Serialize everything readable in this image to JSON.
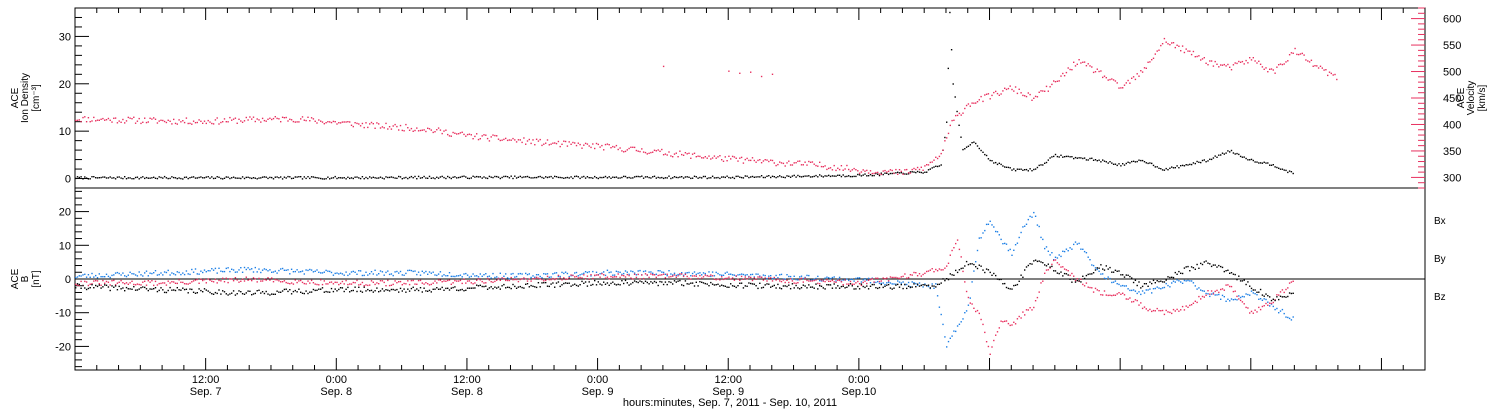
{
  "colors": {
    "black": "#000000",
    "pink": "#e8305f",
    "blue": "#1c7fe6"
  },
  "chart_data": [
    {
      "type": "scatter",
      "panel": "top",
      "left_axis": {
        "label_lines": [
          "ACE",
          "Ion Density",
          "[cm⁻³]"
        ],
        "ticks": [
          "0",
          "10",
          "20",
          "30"
        ],
        "range": [
          -2,
          36
        ]
      },
      "right_axis": {
        "label_lines": [
          "ACE",
          "Velocity",
          "[km/s]"
        ],
        "ticks": [
          "300",
          "350",
          "400",
          "450",
          "500",
          "550",
          "600"
        ],
        "range": [
          280,
          620
        ]
      },
      "series": [
        {
          "axis": "left",
          "color": "#000000",
          "points": [
            [
              0,
              0.3
            ],
            [
              12,
              0.3
            ],
            [
              24,
              0.3
            ],
            [
              36,
              0.4
            ],
            [
              48,
              0.4
            ],
            [
              60,
              0.4
            ],
            [
              72,
              0.8
            ],
            [
              78,
              1.5
            ],
            [
              79.5,
              3
            ],
            [
              80,
              12
            ],
            [
              80.3,
              35
            ],
            [
              80.6,
              20
            ],
            [
              81.5,
              6
            ],
            [
              82.5,
              8
            ],
            [
              84,
              4
            ],
            [
              86,
              2
            ],
            [
              88,
              2
            ],
            [
              90,
              5
            ],
            [
              92,
              4.5
            ],
            [
              94,
              4
            ],
            [
              96,
              3
            ],
            [
              98,
              4
            ],
            [
              100,
              2
            ],
            [
              102,
              3
            ],
            [
              104,
              4
            ],
            [
              106,
              6
            ],
            [
              108,
              4
            ],
            [
              110,
              3
            ],
            [
              112,
              1
            ]
          ]
        },
        {
          "axis": "right",
          "color": "#e8305f",
          "points": [
            [
              0,
              412
            ],
            [
              4,
              410
            ],
            [
              8,
              408
            ],
            [
              12,
              407
            ],
            [
              16,
              410
            ],
            [
              20,
              412
            ],
            [
              24,
              405
            ],
            [
              28,
              398
            ],
            [
              32,
              393
            ],
            [
              36,
              380
            ],
            [
              40,
              372
            ],
            [
              44,
              365
            ],
            [
              48,
              360
            ],
            [
              52,
              352
            ],
            [
              56,
              344
            ],
            [
              60,
              336
            ],
            [
              64,
              330
            ],
            [
              68,
              325
            ],
            [
              72,
              315
            ],
            [
              76,
              310
            ],
            [
              78,
              320
            ],
            [
              79.5,
              345
            ],
            [
              80.5,
              405
            ],
            [
              82,
              440
            ],
            [
              84,
              455
            ],
            [
              86,
              470
            ],
            [
              88,
              450
            ],
            [
              90,
              480
            ],
            [
              92,
              520
            ],
            [
              94,
              500
            ],
            [
              96,
              470
            ],
            [
              98,
              500
            ],
            [
              100,
              560
            ],
            [
              102,
              540
            ],
            [
              104,
              520
            ],
            [
              106,
              508
            ],
            [
              108,
              525
            ],
            [
              110,
              500
            ],
            [
              112,
              540
            ],
            [
              114,
              510
            ],
            [
              116,
              488
            ]
          ]
        },
        {
          "axis": "right",
          "color": "#e8305f",
          "points": [
            [
              54,
              511
            ],
            [
              60,
              502
            ],
            [
              61,
              498
            ],
            [
              62,
              500
            ],
            [
              63,
              492
            ],
            [
              64,
              496
            ]
          ]
        }
      ]
    },
    {
      "type": "scatter",
      "panel": "bottom",
      "left_axis": {
        "label_lines": [
          "ACE",
          "B",
          "[nT]"
        ],
        "ticks": [
          "-20",
          "-10",
          "0",
          "10",
          "20"
        ],
        "range": [
          -27,
          27
        ]
      },
      "legend": [
        {
          "name": "Bx",
          "color": "#000000"
        },
        {
          "name": "By",
          "color": "#1c7fe6"
        },
        {
          "name": "Bz",
          "color": "#e8305f"
        }
      ],
      "series": [
        {
          "name": "Bx",
          "color": "#000000",
          "points": [
            [
              0,
              -2
            ],
            [
              8,
              -3
            ],
            [
              16,
              -4
            ],
            [
              24,
              -3
            ],
            [
              32,
              -3
            ],
            [
              40,
              -2
            ],
            [
              48,
              -1
            ],
            [
              56,
              -1
            ],
            [
              64,
              -2
            ],
            [
              72,
              -2
            ],
            [
              79,
              -2
            ],
            [
              82,
              5
            ],
            [
              84,
              2
            ],
            [
              86,
              -3
            ],
            [
              88,
              6
            ],
            [
              90,
              3
            ],
            [
              92,
              -1
            ],
            [
              94,
              4
            ],
            [
              96,
              2
            ],
            [
              98,
              -2
            ],
            [
              100,
              0
            ],
            [
              102,
              3
            ],
            [
              104,
              5
            ],
            [
              106,
              2
            ],
            [
              108,
              -2
            ],
            [
              110,
              -6
            ],
            [
              112,
              -4
            ]
          ]
        },
        {
          "name": "By",
          "color": "#1c7fe6",
          "points": [
            [
              0,
              1
            ],
            [
              8,
              2
            ],
            [
              16,
              3
            ],
            [
              24,
              2
            ],
            [
              32,
              2
            ],
            [
              40,
              1
            ],
            [
              48,
              2
            ],
            [
              56,
              2
            ],
            [
              64,
              1
            ],
            [
              72,
              0
            ],
            [
              79,
              -2
            ],
            [
              80,
              -20
            ],
            [
              81,
              -14
            ],
            [
              82,
              -8
            ],
            [
              83,
              12
            ],
            [
              84,
              18
            ],
            [
              85,
              12
            ],
            [
              86,
              8
            ],
            [
              87,
              15
            ],
            [
              88,
              20
            ],
            [
              89,
              10
            ],
            [
              90,
              6
            ],
            [
              92,
              11
            ],
            [
              94,
              2
            ],
            [
              96,
              -2
            ],
            [
              98,
              -4
            ],
            [
              100,
              -2
            ],
            [
              102,
              0
            ],
            [
              104,
              -4
            ],
            [
              106,
              -6
            ],
            [
              108,
              -4
            ],
            [
              110,
              -8
            ],
            [
              112,
              -12
            ]
          ]
        },
        {
          "name": "Bz",
          "color": "#e8305f",
          "points": [
            [
              0,
              -1
            ],
            [
              8,
              -1
            ],
            [
              16,
              0
            ],
            [
              24,
              -1
            ],
            [
              32,
              -1
            ],
            [
              40,
              0
            ],
            [
              48,
              1
            ],
            [
              56,
              1
            ],
            [
              64,
              0
            ],
            [
              72,
              -1
            ],
            [
              78,
              2
            ],
            [
              80,
              4
            ],
            [
              81,
              12
            ],
            [
              82,
              -6
            ],
            [
              83,
              -10
            ],
            [
              84,
              -22
            ],
            [
              85,
              -12
            ],
            [
              86,
              -14
            ],
            [
              87,
              -10
            ],
            [
              88,
              -8
            ],
            [
              89,
              2
            ],
            [
              90,
              6
            ],
            [
              92,
              0
            ],
            [
              94,
              -4
            ],
            [
              96,
              -4
            ],
            [
              98,
              -8
            ],
            [
              100,
              -10
            ],
            [
              102,
              -8
            ],
            [
              104,
              -4
            ],
            [
              106,
              -2
            ],
            [
              108,
              -10
            ],
            [
              110,
              -6
            ],
            [
              112,
              0
            ]
          ]
        }
      ]
    }
  ],
  "xaxis": {
    "range_hours": [
      0,
      124
    ],
    "major": [
      {
        "hour": 12,
        "time": "12:00",
        "date": "Sep. 7"
      },
      {
        "hour": 24,
        "time": "0:00",
        "date": "Sep. 8"
      },
      {
        "hour": 36,
        "time": "12:00",
        "date": "Sep. 8"
      },
      {
        "hour": 48,
        "time": "0:00",
        "date": "Sep. 9"
      },
      {
        "hour": 60,
        "time": "12:00",
        "date": "Sep. 9"
      },
      {
        "hour": 72,
        "time": "0:00",
        "date": "Sep.10"
      }
    ],
    "title": "hours:minutes, Sep.  7, 2011 - Sep. 10, 2011"
  }
}
